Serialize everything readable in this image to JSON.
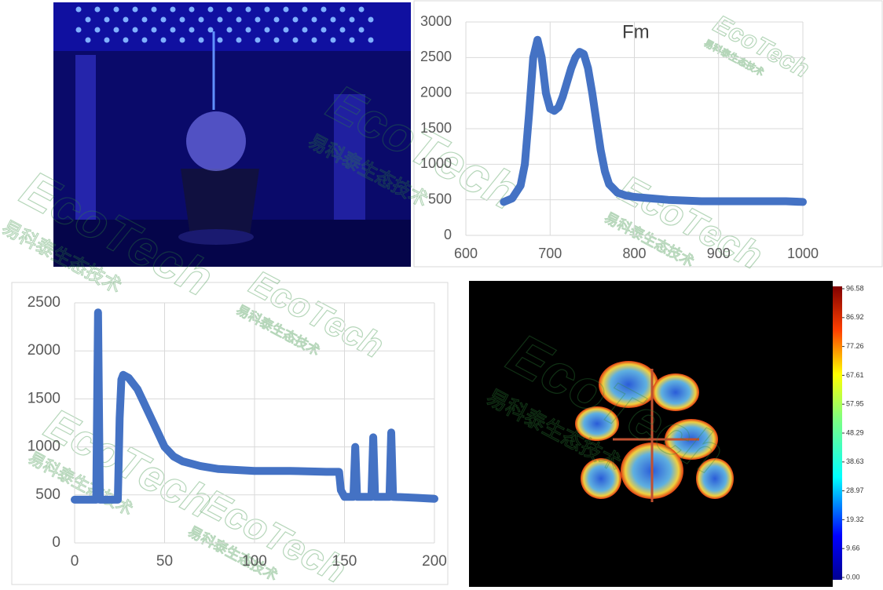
{
  "watermark": {
    "brand": "EcoTech",
    "name": "易科泰生态技术"
  },
  "chart_data": [
    {
      "type": "line",
      "title": "Fm",
      "color": "#4472c4",
      "grid": true,
      "x": [
        645,
        655,
        665,
        670,
        675,
        680,
        685,
        690,
        695,
        700,
        705,
        710,
        715,
        720,
        725,
        730,
        735,
        740,
        745,
        750,
        755,
        760,
        765,
        770,
        780,
        790,
        800,
        820,
        840,
        860,
        880,
        900,
        920,
        940,
        960,
        980,
        1000
      ],
      "values": [
        470,
        520,
        700,
        1000,
        1700,
        2500,
        2750,
        2500,
        2000,
        1780,
        1750,
        1800,
        1950,
        2150,
        2350,
        2500,
        2580,
        2550,
        2350,
        2000,
        1600,
        1200,
        900,
        720,
        600,
        560,
        540,
        520,
        500,
        490,
        480,
        480,
        480,
        480,
        480,
        480,
        470
      ],
      "xlim": [
        600,
        1000
      ],
      "xticks": [
        600,
        700,
        800,
        900,
        1000
      ],
      "ylim": [
        0,
        3000
      ],
      "yticks": [
        0,
        500,
        1000,
        1500,
        2000,
        2500,
        3000
      ]
    },
    {
      "type": "line",
      "color": "#4472c4",
      "grid": true,
      "x": [
        0,
        12,
        13,
        14,
        24,
        25,
        26,
        27,
        30,
        35,
        40,
        45,
        50,
        55,
        60,
        70,
        80,
        90,
        100,
        120,
        140,
        147,
        148,
        150,
        155,
        156,
        157,
        165,
        166,
        167,
        175,
        176,
        177,
        190,
        200
      ],
      "values": [
        450,
        450,
        2400,
        450,
        450,
        1300,
        1700,
        1750,
        1720,
        1600,
        1400,
        1200,
        1000,
        900,
        850,
        800,
        770,
        760,
        750,
        750,
        740,
        740,
        550,
        480,
        480,
        1000,
        480,
        480,
        1100,
        480,
        480,
        1150,
        480,
        470,
        460
      ],
      "xlim": [
        0,
        200
      ],
      "xticks": [
        0,
        50,
        100,
        150,
        200
      ],
      "ylim": [
        0,
        2500
      ],
      "yticks": [
        0,
        500,
        1000,
        1500,
        2000,
        2500
      ]
    },
    {
      "type": "colorbar",
      "ylim": [
        0,
        96.58
      ],
      "yticks": [
        {
          "value": 0,
          "label": "0.00"
        },
        9.66,
        19.32,
        28.97,
        38.63,
        48.29,
        57.95,
        67.61,
        77.26,
        86.92,
        96.58
      ]
    }
  ]
}
